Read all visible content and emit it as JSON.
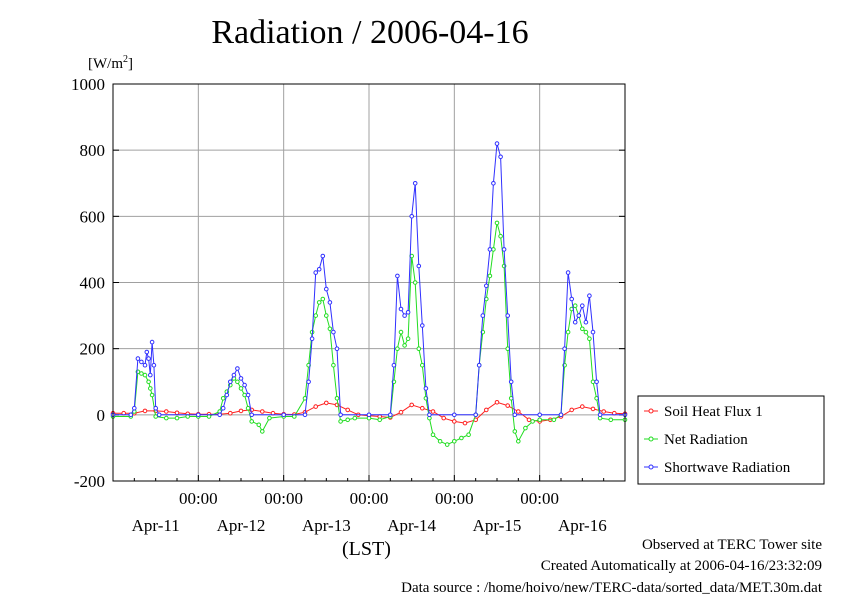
{
  "page": {
    "title": "Radiation / 2006-04-16"
  },
  "chart_data": {
    "type": "line",
    "title": "Radiation / 2006-04-16",
    "ylabel_unit": "[W/m",
    "ylabel_unit_sup": "2",
    "ylabel_unit_close": "]",
    "xlabel": "(LST)",
    "ylim": [
      -200,
      1000
    ],
    "yticks": [
      "-200",
      "0",
      "200",
      "400",
      "600",
      "800",
      "1000"
    ],
    "xlim_hours": [
      0,
      144
    ],
    "xticks_time": [
      "00:00",
      "00:00",
      "00:00",
      "00:00",
      "00:00"
    ],
    "xticks_date": [
      "Apr-11",
      "Apr-12",
      "Apr-13",
      "Apr-14",
      "Apr-15",
      "Apr-16"
    ],
    "grid": true,
    "legend_position": "right",
    "series": [
      {
        "name": "Soil Heat Flux 1",
        "color": "#ff2020",
        "marker": "circle",
        "points": [
          [
            0,
            5
          ],
          [
            3,
            5
          ],
          [
            6,
            5
          ],
          [
            9,
            12
          ],
          [
            12,
            12
          ],
          [
            15,
            10
          ],
          [
            18,
            6
          ],
          [
            21,
            3
          ],
          [
            24,
            2
          ],
          [
            27,
            2
          ],
          [
            30,
            2
          ],
          [
            33,
            5
          ],
          [
            36,
            12
          ],
          [
            39,
            15
          ],
          [
            42,
            10
          ],
          [
            45,
            5
          ],
          [
            48,
            2
          ],
          [
            51,
            1
          ],
          [
            54,
            8
          ],
          [
            57,
            25
          ],
          [
            60,
            36
          ],
          [
            63,
            30
          ],
          [
            66,
            15
          ],
          [
            69,
            0
          ],
          [
            72,
            -3
          ],
          [
            75,
            -5
          ],
          [
            78,
            -8
          ],
          [
            81,
            8
          ],
          [
            84,
            30
          ],
          [
            87,
            20
          ],
          [
            90,
            10
          ],
          [
            93,
            -10
          ],
          [
            96,
            -20
          ],
          [
            99,
            -25
          ],
          [
            102,
            -15
          ],
          [
            105,
            15
          ],
          [
            108,
            38
          ],
          [
            111,
            28
          ],
          [
            114,
            10
          ],
          [
            117,
            -15
          ],
          [
            120,
            -20
          ],
          [
            123,
            -15
          ],
          [
            126,
            -5
          ],
          [
            129,
            15
          ],
          [
            132,
            25
          ],
          [
            135,
            18
          ],
          [
            138,
            10
          ],
          [
            141,
            5
          ],
          [
            144,
            3
          ]
        ]
      },
      {
        "name": "Net Radiation",
        "color": "#22dd22",
        "marker": "circle",
        "points": [
          [
            0,
            -5
          ],
          [
            5,
            -5
          ],
          [
            6,
            10
          ],
          [
            7,
            130
          ],
          [
            8,
            125
          ],
          [
            9,
            120
          ],
          [
            10,
            100
          ],
          [
            10.5,
            80
          ],
          [
            11,
            60
          ],
          [
            12,
            -5
          ],
          [
            15,
            -10
          ],
          [
            18,
            -10
          ],
          [
            21,
            -5
          ],
          [
            24,
            -5
          ],
          [
            27,
            -5
          ],
          [
            30,
            10
          ],
          [
            31,
            50
          ],
          [
            32,
            70
          ],
          [
            33,
            90
          ],
          [
            34,
            110
          ],
          [
            35,
            100
          ],
          [
            36,
            80
          ],
          [
            37,
            60
          ],
          [
            38,
            20
          ],
          [
            39,
            -20
          ],
          [
            41,
            -30
          ],
          [
            42,
            -50
          ],
          [
            44,
            -10
          ],
          [
            48,
            -5
          ],
          [
            51,
            -5
          ],
          [
            54,
            50
          ],
          [
            55,
            150
          ],
          [
            56,
            250
          ],
          [
            57,
            300
          ],
          [
            58,
            340
          ],
          [
            59,
            350
          ],
          [
            60,
            300
          ],
          [
            61,
            260
          ],
          [
            62,
            150
          ],
          [
            63,
            50
          ],
          [
            64,
            -20
          ],
          [
            66,
            -15
          ],
          [
            68,
            -10
          ],
          [
            72,
            -10
          ],
          [
            75,
            -15
          ],
          [
            78,
            -5
          ],
          [
            79,
            100
          ],
          [
            80,
            200
          ],
          [
            81,
            250
          ],
          [
            82,
            210
          ],
          [
            83,
            230
          ],
          [
            84,
            480
          ],
          [
            85,
            400
          ],
          [
            86,
            200
          ],
          [
            87,
            150
          ],
          [
            88,
            50
          ],
          [
            89,
            -10
          ],
          [
            90,
            -60
          ],
          [
            92,
            -80
          ],
          [
            94,
            -90
          ],
          [
            96,
            -80
          ],
          [
            98,
            -70
          ],
          [
            100,
            -60
          ],
          [
            102,
            0
          ],
          [
            103,
            150
          ],
          [
            104,
            250
          ],
          [
            105,
            350
          ],
          [
            106,
            420
          ],
          [
            107,
            500
          ],
          [
            108,
            580
          ],
          [
            109,
            540
          ],
          [
            110,
            450
          ],
          [
            111,
            200
          ],
          [
            112,
            50
          ],
          [
            113,
            -50
          ],
          [
            114,
            -80
          ],
          [
            116,
            -40
          ],
          [
            118,
            -20
          ],
          [
            120,
            -15
          ],
          [
            124,
            -15
          ],
          [
            126,
            0
          ],
          [
            127,
            150
          ],
          [
            128,
            250
          ],
          [
            129,
            320
          ],
          [
            130,
            330
          ],
          [
            131,
            300
          ],
          [
            132,
            260
          ],
          [
            133,
            250
          ],
          [
            134,
            230
          ],
          [
            135,
            100
          ],
          [
            136,
            50
          ],
          [
            137,
            -10
          ],
          [
            140,
            -15
          ],
          [
            144,
            -15
          ]
        ]
      },
      {
        "name": "Shortwave Radiation",
        "color": "#3030ff",
        "marker": "circle",
        "points": [
          [
            0,
            0
          ],
          [
            5,
            0
          ],
          [
            6,
            20
          ],
          [
            7,
            170
          ],
          [
            8,
            160
          ],
          [
            9,
            150
          ],
          [
            9.5,
            190
          ],
          [
            10,
            170
          ],
          [
            10.5,
            120
          ],
          [
            11,
            220
          ],
          [
            11.5,
            150
          ],
          [
            12,
            20
          ],
          [
            13,
            0
          ],
          [
            24,
            0
          ],
          [
            30,
            0
          ],
          [
            31,
            20
          ],
          [
            32,
            60
          ],
          [
            33,
            100
          ],
          [
            34,
            120
          ],
          [
            35,
            140
          ],
          [
            36,
            110
          ],
          [
            37,
            90
          ],
          [
            38,
            60
          ],
          [
            39,
            0
          ],
          [
            48,
            0
          ],
          [
            54,
            0
          ],
          [
            55,
            100
          ],
          [
            56,
            230
          ],
          [
            57,
            430
          ],
          [
            58,
            440
          ],
          [
            59,
            480
          ],
          [
            60,
            380
          ],
          [
            61,
            340
          ],
          [
            62,
            250
          ],
          [
            63,
            200
          ],
          [
            64,
            0
          ],
          [
            72,
            0
          ],
          [
            78,
            0
          ],
          [
            79,
            150
          ],
          [
            80,
            420
          ],
          [
            81,
            320
          ],
          [
            82,
            300
          ],
          [
            83,
            310
          ],
          [
            84,
            600
          ],
          [
            85,
            700
          ],
          [
            86,
            450
          ],
          [
            87,
            270
          ],
          [
            88,
            80
          ],
          [
            89,
            0
          ],
          [
            96,
            0
          ],
          [
            102,
            0
          ],
          [
            103,
            150
          ],
          [
            104,
            300
          ],
          [
            105,
            390
          ],
          [
            106,
            500
          ],
          [
            107,
            700
          ],
          [
            108,
            820
          ],
          [
            109,
            780
          ],
          [
            110,
            500
          ],
          [
            111,
            300
          ],
          [
            112,
            100
          ],
          [
            113,
            0
          ],
          [
            120,
            0
          ],
          [
            126,
            0
          ],
          [
            127,
            200
          ],
          [
            128,
            430
          ],
          [
            129,
            350
          ],
          [
            130,
            280
          ],
          [
            131,
            300
          ],
          [
            132,
            330
          ],
          [
            133,
            280
          ],
          [
            134,
            360
          ],
          [
            135,
            250
          ],
          [
            136,
            100
          ],
          [
            137,
            0
          ],
          [
            144,
            0
          ]
        ]
      }
    ]
  },
  "footer": {
    "line1": "Observed at TERC Tower site",
    "line2": "Created Automatically at 2006-04-16/23:32:09",
    "line3": "Data source : /home/hoivo/new/TERC-data/sorted_data/MET.30m.dat"
  }
}
